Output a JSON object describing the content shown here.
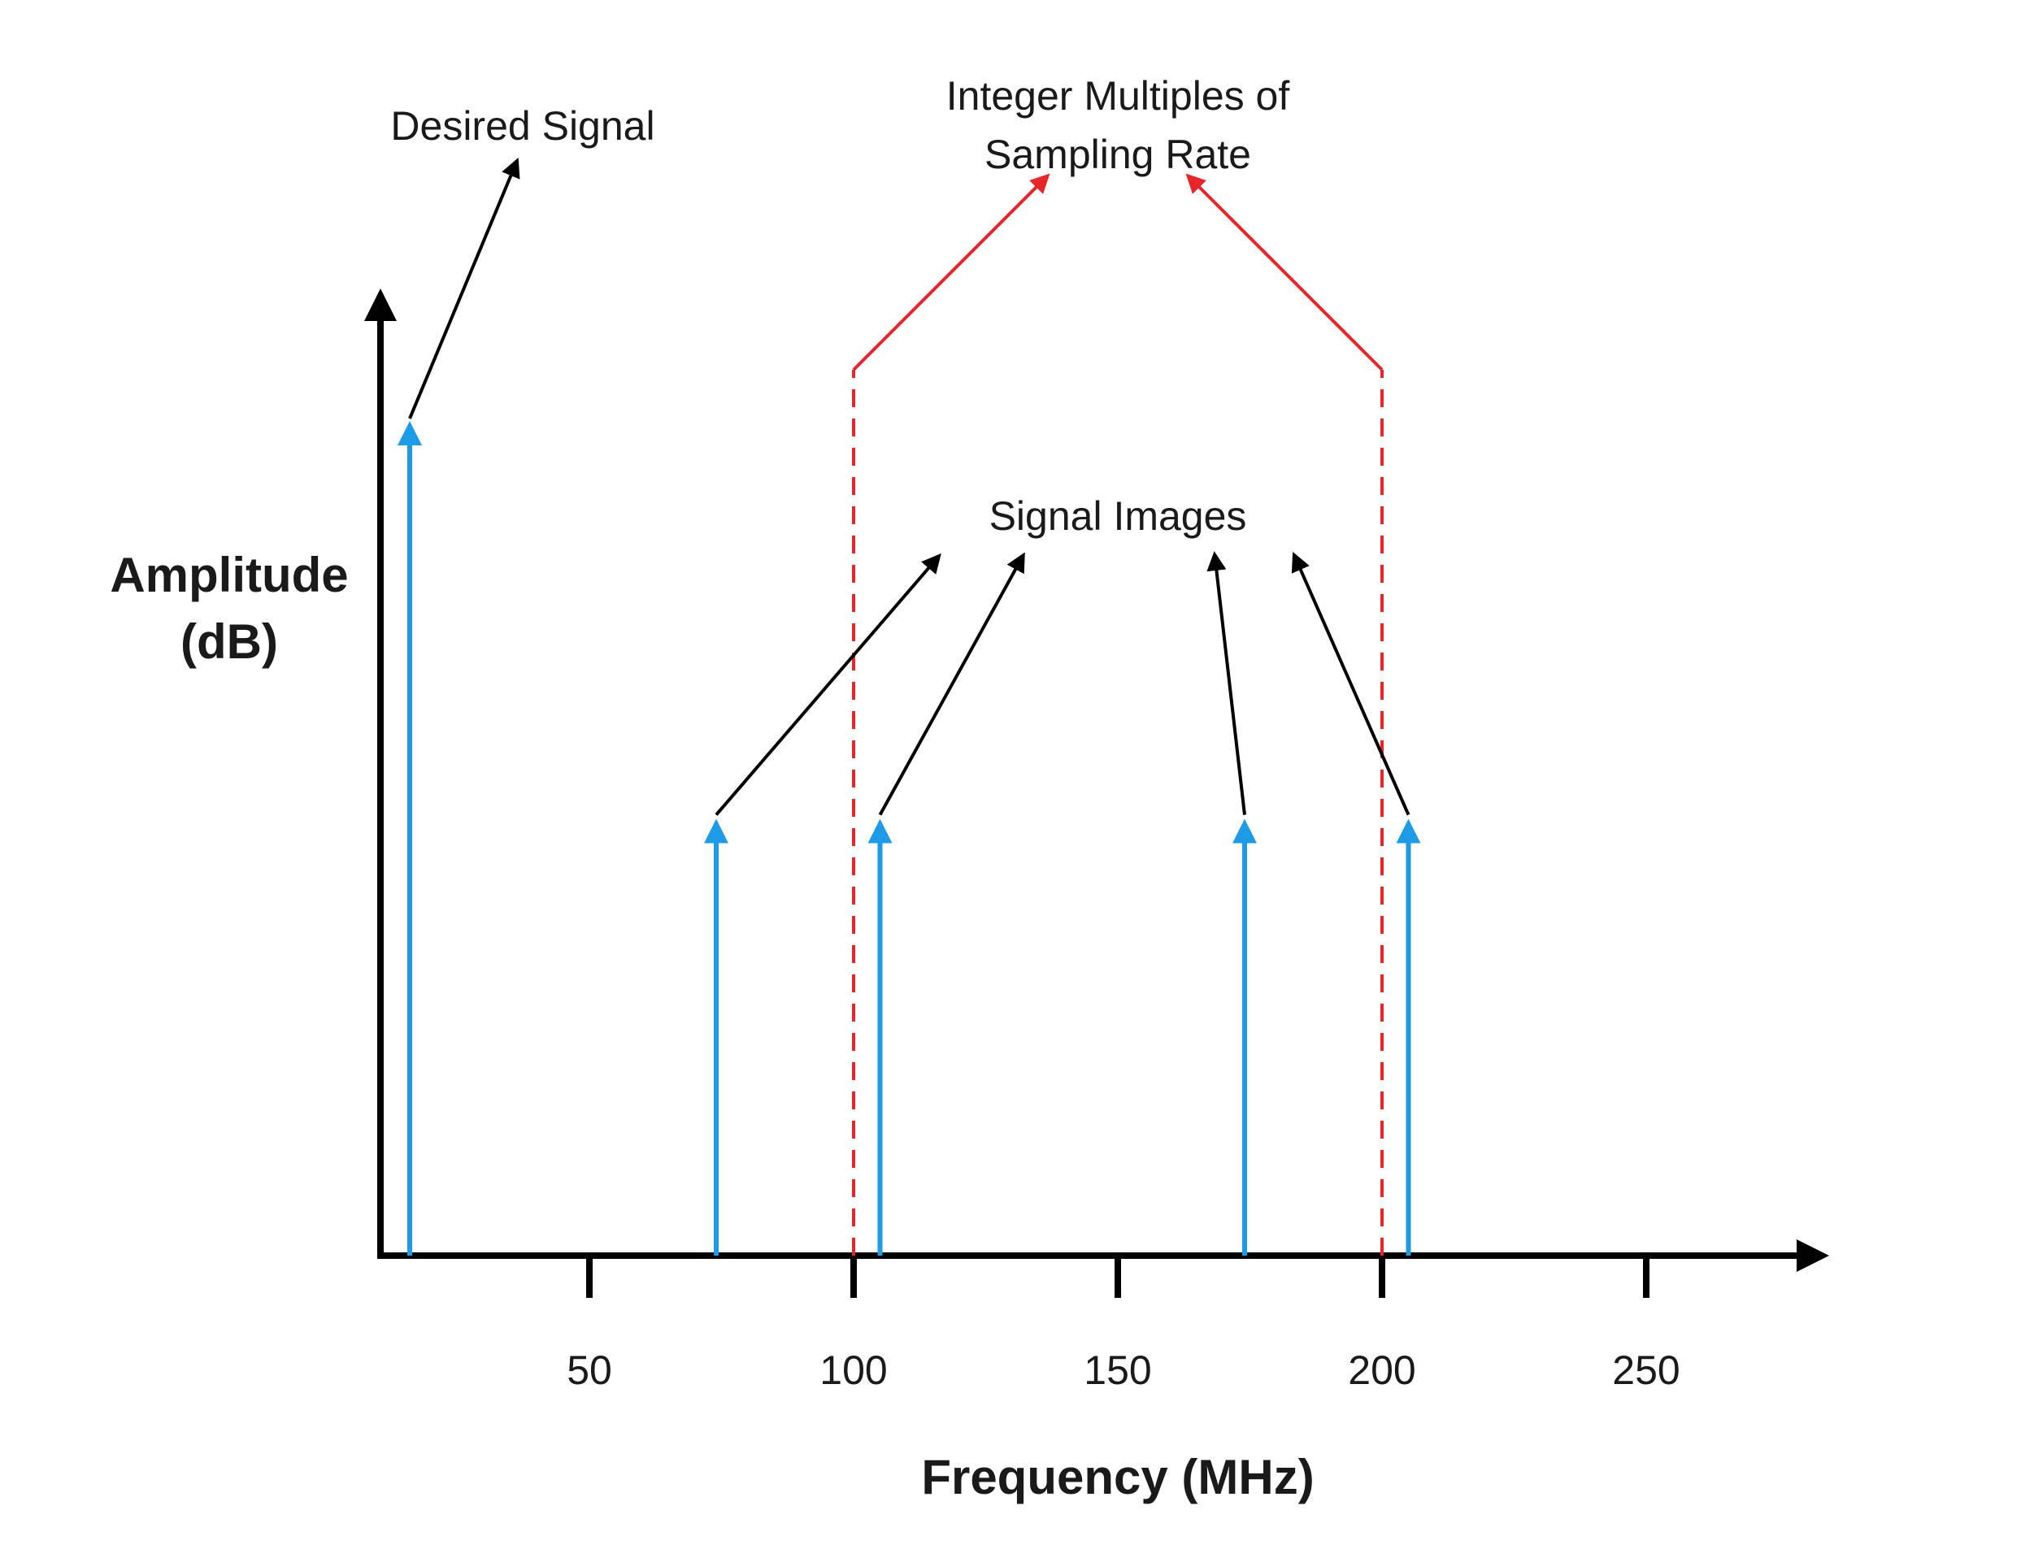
{
  "axes": {
    "y_label_line1": "Amplitude",
    "y_label_line2": "(dB)",
    "x_label": "Frequency (MHz)",
    "x_ticks": [
      {
        "value": 50,
        "label": "50"
      },
      {
        "value": 100,
        "label": "100"
      },
      {
        "value": 150,
        "label": "150"
      },
      {
        "value": 200,
        "label": "200"
      },
      {
        "value": 250,
        "label": "250"
      }
    ]
  },
  "signals": [
    {
      "freq": 16,
      "amplitude": 1.0,
      "kind": "desired"
    },
    {
      "freq": 74,
      "amplitude": 0.52,
      "kind": "image"
    },
    {
      "freq": 105,
      "amplitude": 0.52,
      "kind": "image"
    },
    {
      "freq": 174,
      "amplitude": 0.52,
      "kind": "image"
    },
    {
      "freq": 205,
      "amplitude": 0.52,
      "kind": "image"
    }
  ],
  "sampling_multiples": [
    100,
    200
  ],
  "annotations": {
    "desired_signal": "Desired Signal",
    "integer_multiples_line1": "Integer Multiples of",
    "integer_multiples_line2": "Sampling Rate",
    "signal_images": "Signal Images"
  },
  "colors": {
    "signal": "#1e9be6",
    "sampling": "#e8262a",
    "axis": "#000000",
    "annotation_arrow": "#000000"
  }
}
